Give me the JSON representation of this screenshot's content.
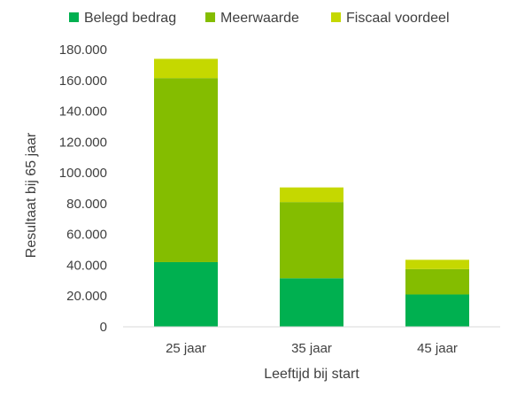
{
  "chart_data": {
    "type": "bar",
    "stacked": true,
    "categories": [
      "25 jaar",
      "35 jaar",
      "45 jaar"
    ],
    "series": [
      {
        "name": "Belegd bedrag",
        "color": "#00b050",
        "values": [
          42000,
          31500,
          21000
        ]
      },
      {
        "name": "Meerwaarde",
        "color": "#84bd00",
        "values": [
          119500,
          49500,
          16500
        ]
      },
      {
        "name": "Fiscaal voordeel",
        "color": "#c5d800",
        "values": [
          12500,
          9500,
          6000
        ]
      }
    ],
    "title": "",
    "xlabel": "Leeftijd bij start",
    "ylabel": "Resultaat bij 65 jaar",
    "ylim": [
      0,
      180000
    ],
    "yticks": [
      0,
      20000,
      40000,
      60000,
      80000,
      100000,
      120000,
      140000,
      160000,
      180000
    ],
    "ytick_labels": [
      "0",
      "20.000",
      "40.000",
      "60.000",
      "80.000",
      "100.000",
      "120.000",
      "140.000",
      "160.000",
      "180.000"
    ],
    "grid": false,
    "legend_position": "top"
  }
}
